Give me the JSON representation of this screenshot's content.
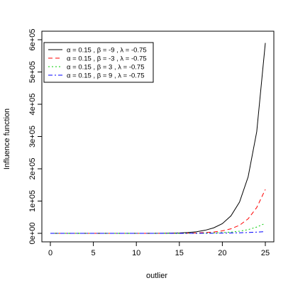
{
  "chart_data": {
    "type": "line",
    "xlabel": "outlier",
    "ylabel": "Influence function",
    "xlim": [
      0,
      25
    ],
    "ylim": [
      0,
      600000
    ],
    "x_ticks": [
      0,
      5,
      10,
      15,
      20,
      25
    ],
    "x_tick_labels": [
      "0",
      "5",
      "10",
      "15",
      "20",
      "25"
    ],
    "y_ticks": [
      0,
      100000,
      200000,
      300000,
      400000,
      500000,
      600000
    ],
    "y_tick_labels": [
      "0e+00",
      "1e+05",
      "2e+05",
      "3e+05",
      "4e+05",
      "5e+05",
      "6e+05"
    ],
    "grid": false,
    "legend_position": "top-left",
    "x": [
      0,
      1,
      2,
      3,
      4,
      5,
      6,
      7,
      8,
      9,
      10,
      11,
      12,
      13,
      14,
      15,
      16,
      17,
      18,
      19,
      20,
      21,
      22,
      23,
      24,
      25
    ],
    "series": [
      {
        "name": "α = 0.15 , β = -9 , λ = -0.75",
        "alpha": "0.15",
        "beta": "-9",
        "lambda": "-0.75",
        "color": "#000000",
        "dash": "",
        "values": [
          0,
          0,
          0,
          0,
          0,
          0,
          0,
          0,
          0,
          0,
          0,
          0,
          100,
          300,
          600,
          1200,
          2500,
          5000,
          9500,
          17000,
          30000,
          54000,
          97000,
          175000,
          315000,
          590000
        ]
      },
      {
        "name": "α = 0.15 , β = -3 , λ = -0.75",
        "alpha": "0.15",
        "beta": "-3",
        "lambda": "-0.75",
        "color": "#ff0000",
        "dash": "6,4",
        "values": [
          0,
          0,
          0,
          0,
          0,
          0,
          0,
          0,
          0,
          0,
          0,
          0,
          0,
          0,
          100,
          300,
          600,
          1200,
          2300,
          4200,
          7700,
          14000,
          25000,
          45000,
          80000,
          136000
        ]
      },
      {
        "name": "α = 0.15 , β = 3 , λ = -0.75",
        "alpha": "0.15",
        "beta": "3",
        "lambda": "-0.75",
        "color": "#00cd00",
        "dash": "2,3",
        "values": [
          0,
          0,
          0,
          0,
          0,
          0,
          0,
          0,
          0,
          0,
          0,
          0,
          0,
          0,
          0,
          100,
          200,
          400,
          700,
          1200,
          2200,
          3800,
          6600,
          11500,
          19500,
          31000
        ]
      },
      {
        "name": "α = 0.15 , β = 9 , λ = -0.75",
        "alpha": "0.15",
        "beta": "9",
        "lambda": "-0.75",
        "color": "#0000ff",
        "dash": "6,3,2,3",
        "values": [
          0,
          0,
          0,
          0,
          0,
          0,
          0,
          0,
          0,
          0,
          0,
          0,
          0,
          0,
          0,
          0,
          0,
          100,
          200,
          400,
          700,
          1100,
          1700,
          2600,
          3800,
          5500
        ]
      }
    ]
  }
}
